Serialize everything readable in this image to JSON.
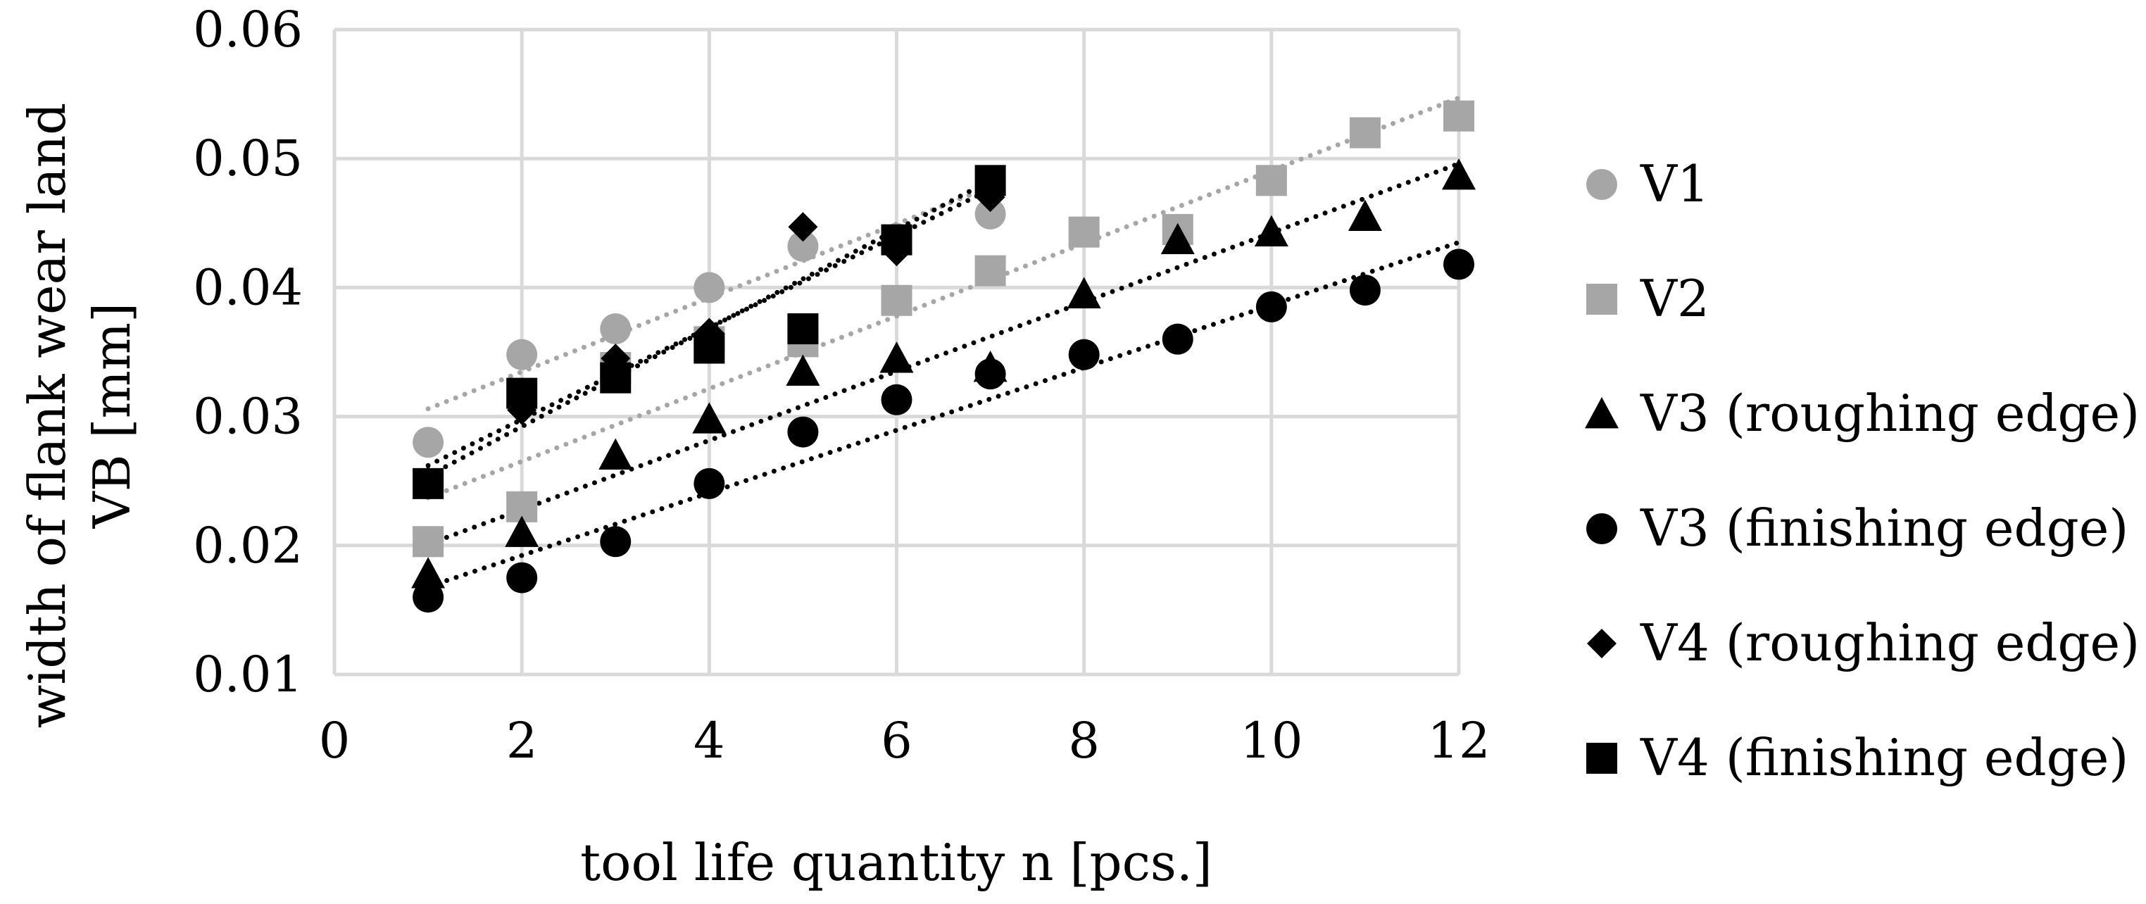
{
  "chart_data": {
    "type": "scatter",
    "title": "",
    "xlabel": "tool life quantity n [pcs.]",
    "ylabel": [
      "width of flank wear land",
      "VB [mm]"
    ],
    "xlim": [
      0,
      12
    ],
    "ylim": [
      0.01,
      0.06
    ],
    "xticks": [
      "0",
      "2",
      "4",
      "6",
      "8",
      "10",
      "12"
    ],
    "yticks": [
      "0.01",
      "0.02",
      "0.03",
      "0.04",
      "0.05",
      "0.06"
    ],
    "grid": true,
    "legend_position": "right",
    "series": [
      {
        "name": "V1",
        "marker": "circle",
        "color": "#a6a6a6",
        "x": [
          1,
          2,
          3,
          4,
          5,
          6,
          7
        ],
        "y": [
          0.028,
          0.0348,
          0.0368,
          0.04,
          0.0432,
          0.0438,
          0.0457
        ],
        "trendline": {
          "from": [
            1,
            0.0306
          ],
          "to": [
            7,
            0.0478
          ]
        }
      },
      {
        "name": "V2",
        "marker": "square",
        "color": "#a6a6a6",
        "x": [
          1,
          2,
          3,
          4,
          5,
          6,
          7,
          8,
          9,
          10,
          11,
          12
        ],
        "y": [
          0.0203,
          0.023,
          0.0338,
          0.0358,
          0.0358,
          0.039,
          0.0413,
          0.0443,
          0.0445,
          0.0483,
          0.052,
          0.0533
        ],
        "trendline": {
          "from": [
            1,
            0.0237
          ],
          "to": [
            12,
            0.0547
          ]
        }
      },
      {
        "name": "V3 (roughing edge)",
        "marker": "triangle",
        "color": "#000000",
        "x": [
          1,
          2,
          3,
          4,
          5,
          6,
          7,
          8,
          9,
          10,
          11,
          12
        ],
        "y": [
          0.0178,
          0.021,
          0.027,
          0.0298,
          0.0335,
          0.0345,
          0.0338,
          0.0395,
          0.0437,
          0.0443,
          0.0455,
          0.0487
        ],
        "trendline": {
          "from": [
            1,
            0.0201
          ],
          "to": [
            12,
            0.0496
          ]
        }
      },
      {
        "name": "V3 (finishing edge)",
        "marker": "circle",
        "color": "#000000",
        "x": [
          1,
          2,
          3,
          4,
          5,
          6,
          7,
          8,
          9,
          10,
          11,
          12
        ],
        "y": [
          0.016,
          0.0175,
          0.0203,
          0.0248,
          0.0288,
          0.0313,
          0.0333,
          0.0348,
          0.036,
          0.0385,
          0.0398,
          0.0418
        ],
        "trendline": {
          "from": [
            1,
            0.0168
          ],
          "to": [
            12,
            0.0435
          ]
        }
      },
      {
        "name": "V4 (roughing edge)",
        "marker": "diamond",
        "color": "#000000",
        "x": [
          1,
          2,
          3,
          4,
          5,
          6,
          7
        ],
        "y": [
          0.025,
          0.0305,
          0.0345,
          0.0365,
          0.0447,
          0.0428,
          0.047
        ],
        "trendline": {
          "from": [
            1,
            0.0262
          ],
          "to": [
            7,
            0.0476
          ]
        }
      },
      {
        "name": "V4 (finishing edge)",
        "marker": "square",
        "color": "#000000",
        "x": [
          1,
          2,
          3,
          4,
          5,
          6,
          7
        ],
        "y": [
          0.0248,
          0.0318,
          0.033,
          0.0353,
          0.0368,
          0.0437,
          0.0483
        ],
        "trendline": {
          "from": [
            1,
            0.0254
          ],
          "to": [
            7,
            0.0483
          ]
        }
      }
    ]
  }
}
